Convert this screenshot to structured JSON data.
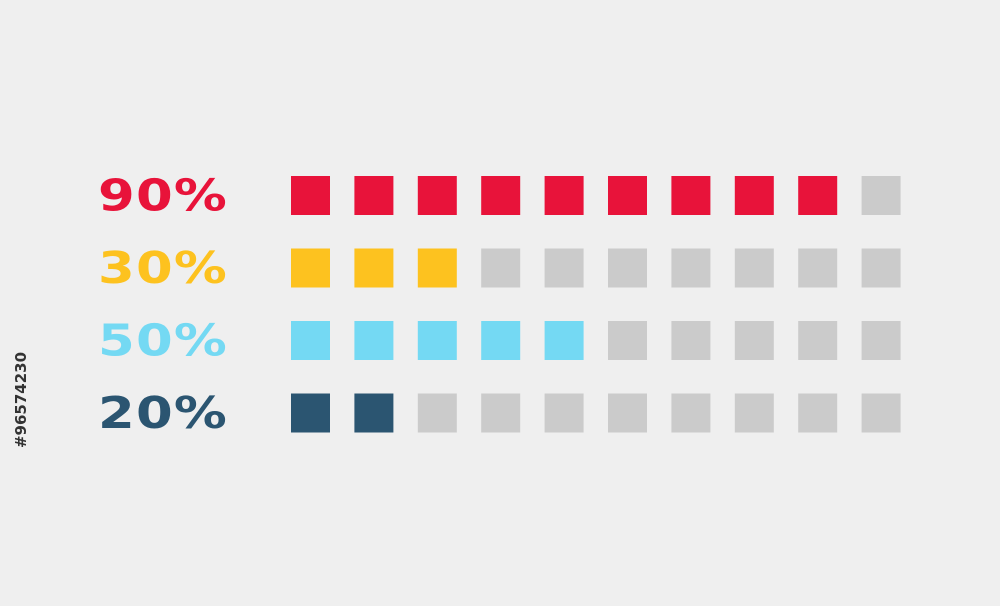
{
  "chart_data": {
    "type": "bar",
    "units_per_row": 10,
    "rows": [
      {
        "label": "90%",
        "value": 90,
        "filled": 9,
        "color": "#e8133a"
      },
      {
        "label": "30%",
        "value": 30,
        "filled": 3,
        "color": "#fdc21f"
      },
      {
        "label": "50%",
        "value": 50,
        "filled": 5,
        "color": "#74d9f3"
      },
      {
        "label": "20%",
        "value": 20,
        "filled": 2,
        "color": "#2b5571"
      }
    ],
    "empty_color": "#cbcbcb",
    "background": "#efefef"
  },
  "watermark": {
    "id_text": "#96574230"
  }
}
